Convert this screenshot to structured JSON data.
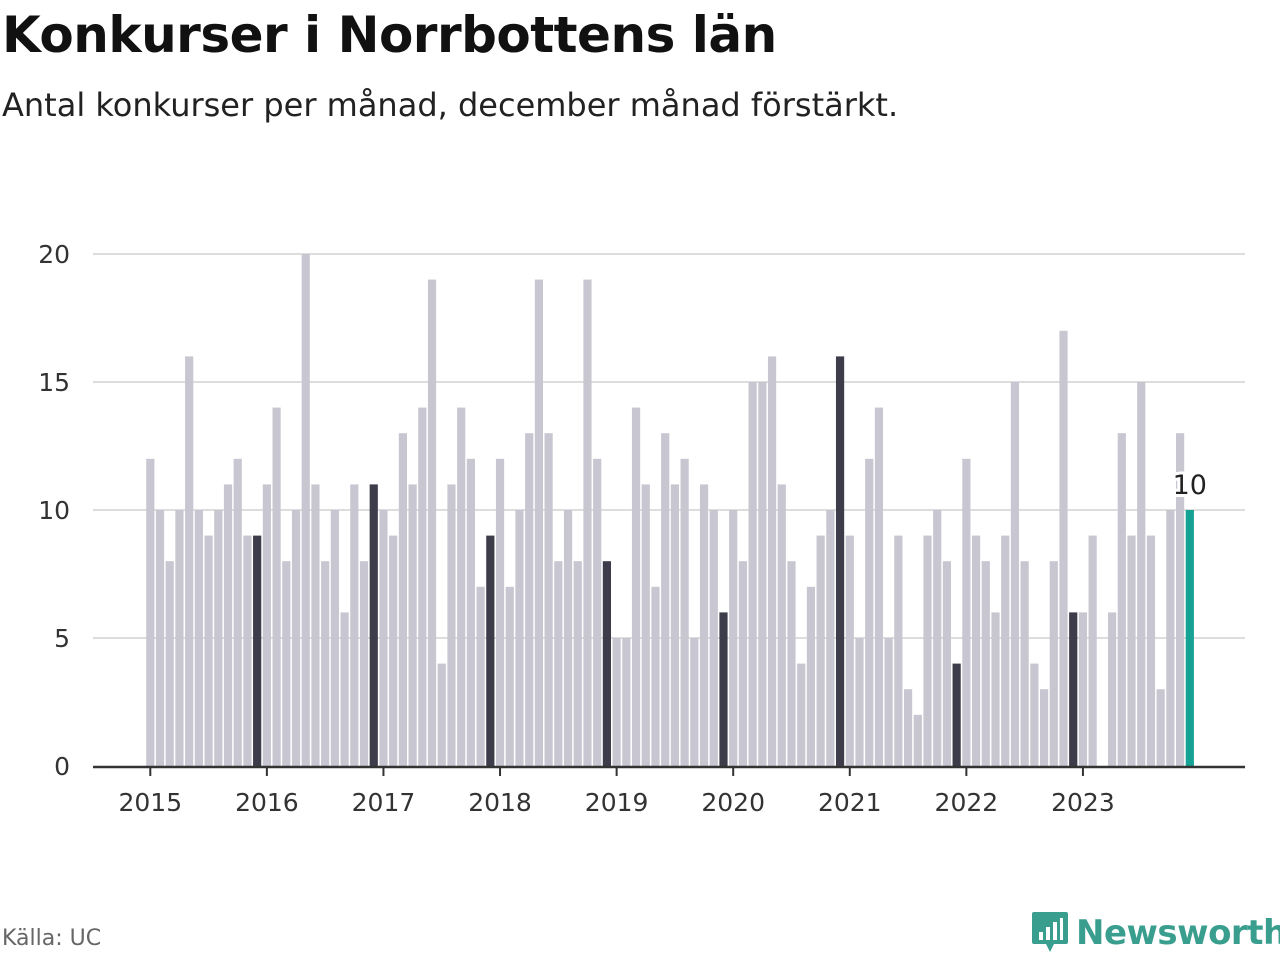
{
  "header": {
    "title": "Konkurser i Norrbottens län",
    "subtitle": "Antal konkurser per månad, december månad förstärkt."
  },
  "footer": {
    "source": "Källa: UC",
    "brand": "Newsworthy"
  },
  "colors": {
    "bar": "#c8c7d1",
    "december": "#3d3c4a",
    "latest": "#13a293",
    "grid": "#dddddd",
    "axis": "#333333",
    "brand": "#3a9e8f"
  },
  "icons": {
    "brand_logo": "bar-chart-speech-bubble-icon"
  },
  "chart_data": {
    "type": "bar",
    "title": "Konkurser i Norrbottens län",
    "subtitle": "Antal konkurser per månad, december månad förstärkt.",
    "ylim": [
      0,
      20
    ],
    "yticks": [
      0,
      5,
      10,
      15,
      20
    ],
    "xticks": [
      "2015",
      "2016",
      "2017",
      "2018",
      "2019",
      "2020",
      "2021",
      "2022",
      "2023"
    ],
    "start": "2015-01",
    "highlight": "december",
    "latest_label": "10",
    "grid": true,
    "legend": "none",
    "values": [
      12,
      10,
      8,
      10,
      16,
      10,
      9,
      10,
      11,
      12,
      9,
      9,
      11,
      14,
      8,
      10,
      20,
      11,
      8,
      10,
      6,
      11,
      8,
      11,
      10,
      9,
      13,
      11,
      14,
      19,
      4,
      11,
      14,
      12,
      7,
      9,
      12,
      7,
      10,
      13,
      19,
      13,
      8,
      10,
      8,
      19,
      12,
      8,
      5,
      5,
      14,
      11,
      7,
      13,
      11,
      12,
      5,
      11,
      10,
      6,
      10,
      8,
      15,
      15,
      16,
      11,
      8,
      4,
      7,
      9,
      10,
      16,
      9,
      5,
      12,
      14,
      5,
      9,
      3,
      2,
      9,
      10,
      8,
      4,
      12,
      9,
      8,
      6,
      9,
      15,
      8,
      4,
      3,
      8,
      17,
      6,
      6,
      9,
      0,
      6,
      13,
      9,
      15,
      9,
      3,
      10,
      13,
      10
    ]
  }
}
